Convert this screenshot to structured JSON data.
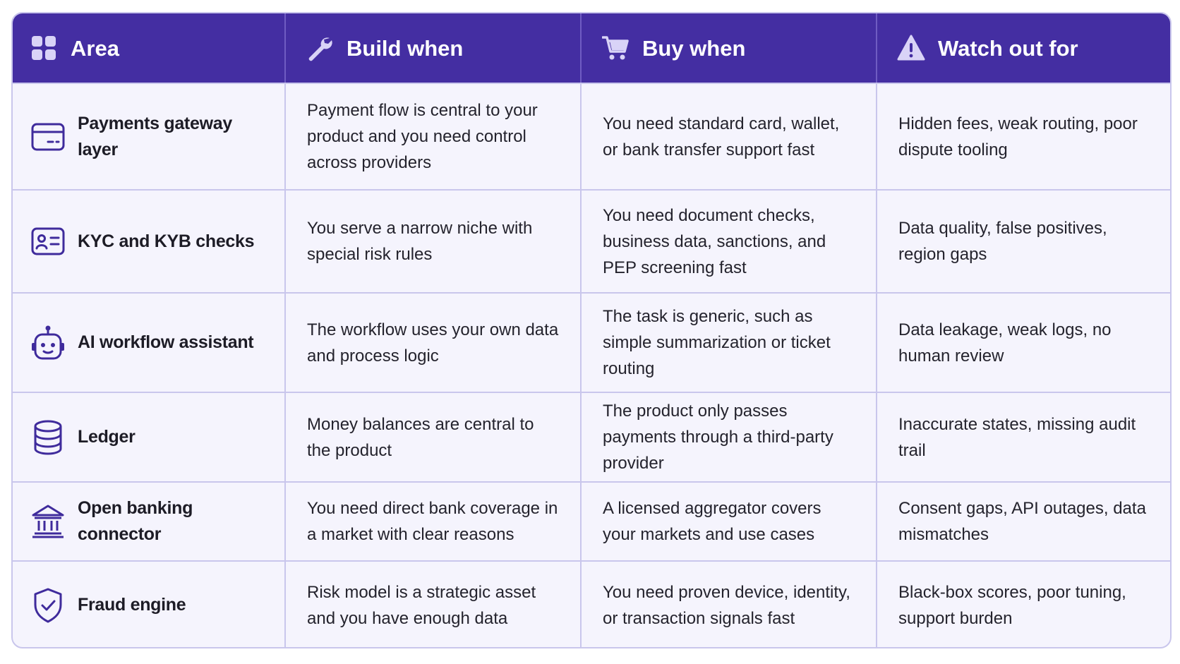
{
  "colors": {
    "header_bg": "#442ea2",
    "row_bg": "#f5f4fd",
    "border": "#c9c6ec",
    "icon_stroke": "#3f2b9c"
  },
  "header": {
    "area": {
      "label": "Area",
      "icon": "grid-icon"
    },
    "build": {
      "label": "Build when",
      "icon": "wrench-icon"
    },
    "buy": {
      "label": "Buy when",
      "icon": "cart-icon"
    },
    "watch": {
      "label": "Watch out for",
      "icon": "warning-icon"
    }
  },
  "rows": [
    {
      "area": "Payments gateway layer",
      "icon": "credit-card-icon",
      "build": "Payment flow is central to your product and you need control across providers",
      "buy": "You need standard card, wallet, or bank transfer support fast",
      "watch": "Hidden fees, weak routing, poor dispute tooling"
    },
    {
      "area": "KYC and KYB checks",
      "icon": "id-card-icon",
      "build": "You serve a narrow niche with special risk rules",
      "buy": "You need document checks, business data, sanctions, and PEP screening fast",
      "watch": "Data quality, false positives, region gaps"
    },
    {
      "area": "AI workflow assistant",
      "icon": "robot-icon",
      "build": "The workflow uses your own data and process logic",
      "buy": "The task is generic, such as simple summarization or ticket routing",
      "watch": "Data leakage, weak logs, no human review"
    },
    {
      "area": "Ledger",
      "icon": "database-icon",
      "build": "Money balances are central to the product",
      "buy": "The product only passes payments through a third-party provider",
      "watch": "Inaccurate states, missing audit trail"
    },
    {
      "area": "Open banking connector",
      "icon": "bank-icon",
      "build": "You need direct bank coverage in a market with clear reasons",
      "buy": "A licensed aggregator covers your markets and use cases",
      "watch": "Consent gaps, API outages, data mismatches"
    },
    {
      "area": "Fraud engine",
      "icon": "shield-check-icon",
      "build": "Risk model is a strategic asset and you have enough data",
      "buy": "You need proven device, identity, or transaction signals fast",
      "watch": "Black-box scores, poor tuning, support burden"
    }
  ]
}
